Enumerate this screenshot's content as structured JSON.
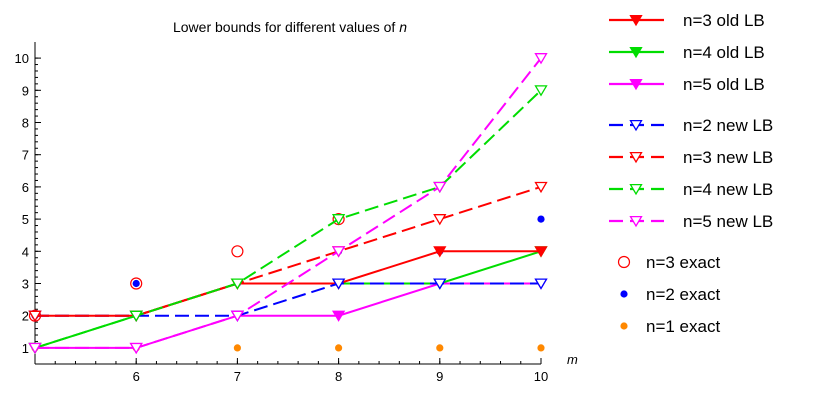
{
  "chart_data": {
    "type": "line",
    "title": "Lower bounds for different values of",
    "title_var": "n",
    "xlabel": "m",
    "ylabel": "",
    "x_ticks": [
      6,
      7,
      8,
      9,
      10
    ],
    "y_ticks": [
      1,
      2,
      3,
      4,
      5,
      6,
      7,
      8,
      9,
      10
    ],
    "xlim": [
      5,
      10
    ],
    "ylim": [
      0.5,
      10.5
    ],
    "grid": false,
    "legend_position": "right",
    "series": [
      {
        "name": "n=3 old LB",
        "color": "#ff0000",
        "style": "solid",
        "marker": "filled-down-triangle",
        "x": [
          5,
          6,
          7,
          8,
          9,
          10
        ],
        "y": [
          2,
          2,
          3,
          3,
          4,
          4
        ]
      },
      {
        "name": "n=4 old LB",
        "color": "#00dd00",
        "style": "solid",
        "marker": "filled-down-triangle",
        "x": [
          5,
          6,
          7,
          8,
          9,
          10
        ],
        "y": [
          1,
          2,
          3,
          3,
          3,
          4
        ]
      },
      {
        "name": "n=5 old LB",
        "color": "#ff00ff",
        "style": "solid",
        "marker": "filled-down-triangle",
        "x": [
          5,
          6,
          7,
          8,
          9,
          10
        ],
        "y": [
          1,
          1,
          2,
          2,
          3,
          3
        ]
      },
      {
        "name": "n=2 new LB",
        "color": "#0000ff",
        "style": "dashed",
        "marker": "open-down-triangle",
        "x": [
          5,
          6,
          7,
          8,
          9,
          10
        ],
        "y": [
          2,
          2,
          2,
          3,
          3,
          3
        ]
      },
      {
        "name": "n=3 new LB",
        "color": "#ff0000",
        "style": "dashed",
        "marker": "open-down-triangle",
        "x": [
          5,
          6,
          7,
          8,
          9,
          10
        ],
        "y": [
          2,
          2,
          3,
          4,
          5,
          6
        ]
      },
      {
        "name": "n=4 new LB",
        "color": "#00dd00",
        "style": "dashed",
        "marker": "open-down-triangle",
        "x": [
          5,
          6,
          7,
          8,
          9,
          10
        ],
        "y": [
          1,
          2,
          3,
          5,
          6,
          9
        ]
      },
      {
        "name": "n=5 new LB",
        "color": "#ff00ff",
        "style": "dashed",
        "marker": "open-down-triangle",
        "x": [
          5,
          6,
          7,
          8,
          9,
          10
        ],
        "y": [
          1,
          1,
          2,
          4,
          6,
          10
        ]
      },
      {
        "name": "n=3 exact",
        "color": "#ff0000",
        "style": "none",
        "marker": "open-circle",
        "x": [
          5,
          6,
          7,
          8
        ],
        "y": [
          2,
          3,
          4,
          5
        ]
      },
      {
        "name": "n=2 exact",
        "color": "#0000ff",
        "style": "none",
        "marker": "filled-circle",
        "x": [
          5,
          6,
          7,
          8,
          9,
          10
        ],
        "y": [
          2,
          3,
          3,
          4,
          4,
          5
        ]
      },
      {
        "name": "n=1 exact",
        "color": "#ff8800",
        "style": "none",
        "marker": "filled-circle",
        "x": [
          5,
          6,
          7,
          8,
          9,
          10
        ],
        "y": [
          1,
          1,
          1,
          1,
          1,
          1
        ]
      }
    ]
  }
}
